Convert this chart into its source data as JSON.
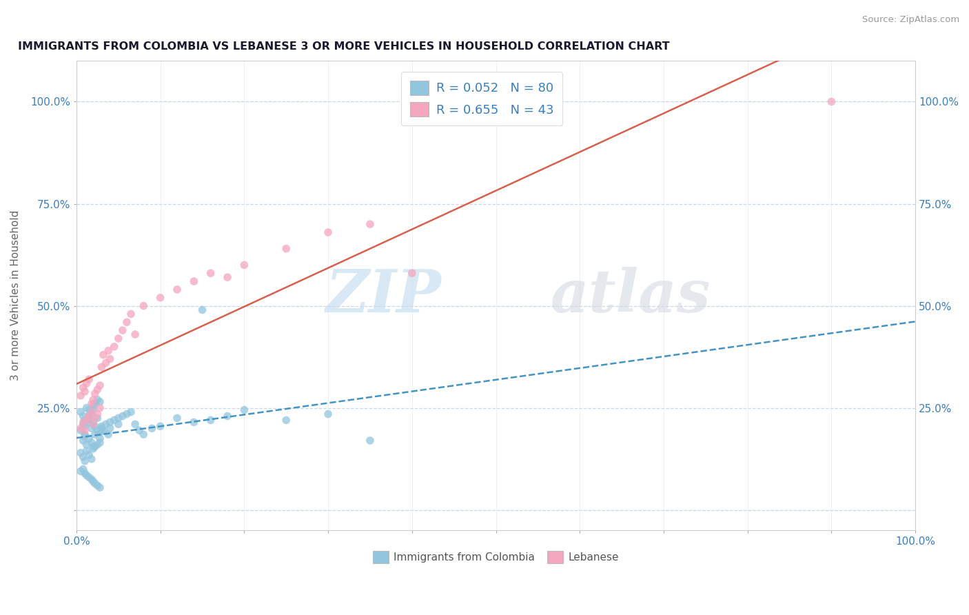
{
  "title": "IMMIGRANTS FROM COLOMBIA VS LEBANESE 3 OR MORE VEHICLES IN HOUSEHOLD CORRELATION CHART",
  "source": "Source: ZipAtlas.com",
  "ylabel": "3 or more Vehicles in Household",
  "xlim": [
    0.0,
    1.0
  ],
  "ylim": [
    -0.05,
    1.1
  ],
  "x_ticks": [
    0.0,
    0.1,
    0.2,
    0.3,
    0.4,
    0.5,
    0.6,
    0.7,
    0.8,
    0.9,
    1.0
  ],
  "y_tick_vals": [
    0.0,
    0.25,
    0.5,
    0.75,
    1.0
  ],
  "colombia_color": "#92c5de",
  "lebanese_color": "#f4a6be",
  "colombia_line_color": "#4393c3",
  "lebanese_line_color": "#d6604d",
  "colombia_R": 0.052,
  "colombia_N": 80,
  "lebanese_R": 0.655,
  "lebanese_N": 43,
  "legend_label_1": "Immigrants from Colombia",
  "legend_label_2": "Lebanese",
  "watermark_zip": "ZIP",
  "watermark_atlas": "atlas",
  "background_color": "#ffffff",
  "grid_color": "#c8d8e8",
  "title_color": "#1a1a2e",
  "axis_label_color": "#3a7ebf",
  "colombia_scatter_x": [
    0.005,
    0.008,
    0.01,
    0.012,
    0.015,
    0.018,
    0.02,
    0.022,
    0.025,
    0.028,
    0.008,
    0.01,
    0.012,
    0.015,
    0.018,
    0.02,
    0.022,
    0.025,
    0.028,
    0.03,
    0.005,
    0.008,
    0.01,
    0.012,
    0.015,
    0.018,
    0.02,
    0.022,
    0.025,
    0.028,
    0.005,
    0.008,
    0.01,
    0.012,
    0.015,
    0.018,
    0.02,
    0.022,
    0.025,
    0.028,
    0.03,
    0.032,
    0.035,
    0.038,
    0.04,
    0.045,
    0.05,
    0.055,
    0.06,
    0.065,
    0.005,
    0.008,
    0.01,
    0.012,
    0.015,
    0.018,
    0.02,
    0.022,
    0.025,
    0.028,
    0.07,
    0.075,
    0.08,
    0.09,
    0.1,
    0.12,
    0.14,
    0.16,
    0.18,
    0.2,
    0.25,
    0.3,
    0.35,
    0.15,
    0.05,
    0.04,
    0.03,
    0.02,
    0.015,
    0.01
  ],
  "colombia_scatter_y": [
    0.195,
    0.21,
    0.185,
    0.22,
    0.23,
    0.2,
    0.215,
    0.205,
    0.225,
    0.19,
    0.17,
    0.18,
    0.16,
    0.175,
    0.165,
    0.155,
    0.185,
    0.195,
    0.175,
    0.205,
    0.24,
    0.23,
    0.22,
    0.25,
    0.245,
    0.235,
    0.255,
    0.26,
    0.27,
    0.265,
    0.14,
    0.13,
    0.12,
    0.145,
    0.135,
    0.125,
    0.15,
    0.155,
    0.16,
    0.165,
    0.2,
    0.195,
    0.21,
    0.185,
    0.215,
    0.22,
    0.225,
    0.23,
    0.235,
    0.24,
    0.095,
    0.1,
    0.09,
    0.085,
    0.08,
    0.075,
    0.07,
    0.065,
    0.06,
    0.055,
    0.21,
    0.195,
    0.185,
    0.2,
    0.205,
    0.225,
    0.215,
    0.22,
    0.23,
    0.245,
    0.22,
    0.235,
    0.17,
    0.49,
    0.21,
    0.2,
    0.195,
    0.245,
    0.215,
    0.205
  ],
  "lebanese_scatter_x": [
    0.005,
    0.008,
    0.01,
    0.012,
    0.015,
    0.018,
    0.02,
    0.022,
    0.025,
    0.028,
    0.005,
    0.008,
    0.01,
    0.012,
    0.015,
    0.018,
    0.02,
    0.022,
    0.025,
    0.028,
    0.03,
    0.032,
    0.035,
    0.038,
    0.04,
    0.045,
    0.05,
    0.055,
    0.06,
    0.065,
    0.07,
    0.08,
    0.1,
    0.12,
    0.14,
    0.16,
    0.2,
    0.25,
    0.3,
    0.35,
    0.4,
    0.18,
    0.9
  ],
  "lebanese_scatter_y": [
    0.2,
    0.215,
    0.195,
    0.22,
    0.23,
    0.24,
    0.21,
    0.225,
    0.235,
    0.25,
    0.28,
    0.3,
    0.29,
    0.31,
    0.32,
    0.26,
    0.27,
    0.285,
    0.295,
    0.305,
    0.35,
    0.38,
    0.36,
    0.39,
    0.37,
    0.4,
    0.42,
    0.44,
    0.46,
    0.48,
    0.43,
    0.5,
    0.52,
    0.54,
    0.56,
    0.58,
    0.6,
    0.64,
    0.68,
    0.7,
    0.58,
    0.57,
    1.0
  ]
}
